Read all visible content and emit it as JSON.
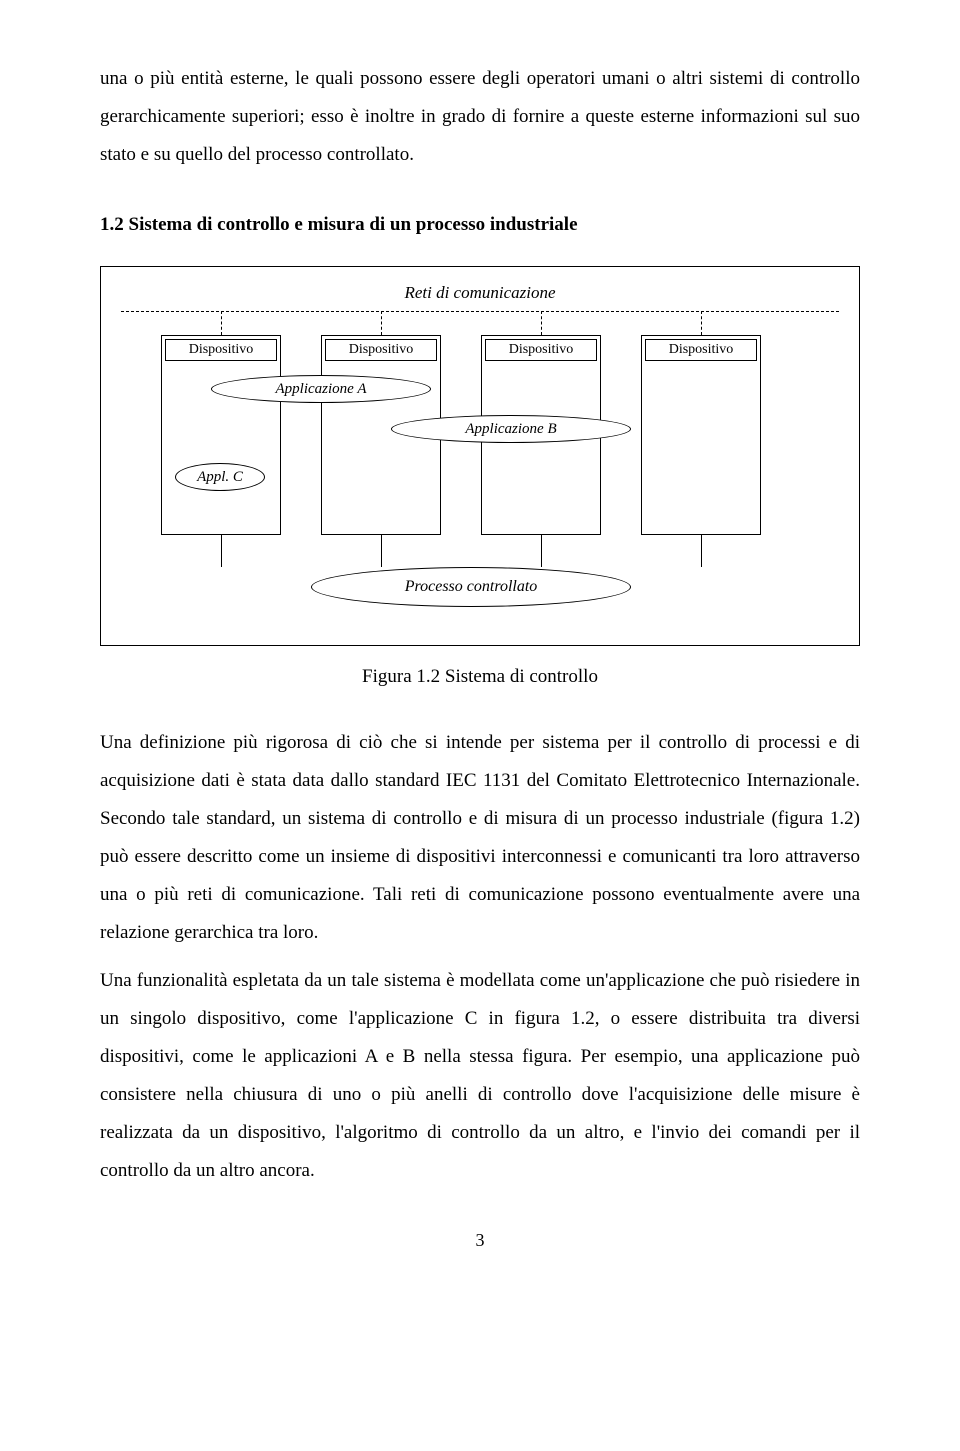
{
  "page": {
    "number": "3"
  },
  "text": {
    "intro": "una o più entità esterne, le quali possono essere degli operatori umani o altri sistemi di controllo gerarchicamente superiori; esso è inoltre in grado di fornire a queste esterne informazioni sul suo stato e su quello del processo controllato.",
    "heading": "1.2 Sistema di controllo e misura di un processo industriale",
    "caption": "Figura 1.2 Sistema di controllo",
    "p1": "Una definizione più rigorosa di ciò che si intende per sistema per il controllo di processi e di acquisizione dati è stata data dallo standard IEC 1131 del Comitato Elettrotecnico Internazionale. Secondo tale standard, un sistema di controllo e di misura di un processo industriale (figura 1.2) può essere descritto come un insieme di dispositivi interconnessi e comunicanti tra loro attraverso una o più reti di comunicazione. Tali reti di comunicazione possono eventualmente avere una relazione gerarchica tra loro.",
    "p2": "Una funzionalità espletata da un tale sistema è modellata come un'applicazione che può risiedere in un singolo dispositivo, come l'applicazione C in figura 1.2, o essere distribuita tra diversi dispositivi, come le applicazioni A e B nella stessa figura. Per esempio, una applicazione può consistere nella chiusura di uno o più anelli di controllo dove l'acquisizione delle misure è realizzata da un dispositivo, l'algoritmo di controllo da un altro, e l'invio dei comandi per il controllo da un altro ancora."
  },
  "figure": {
    "net_label": "Reti di comunicazione",
    "device_label": "Dispositivo",
    "appA": "Applicazione A",
    "appB": "Applicazione B",
    "appC": "Appl. C",
    "process": "Processo controllato"
  }
}
